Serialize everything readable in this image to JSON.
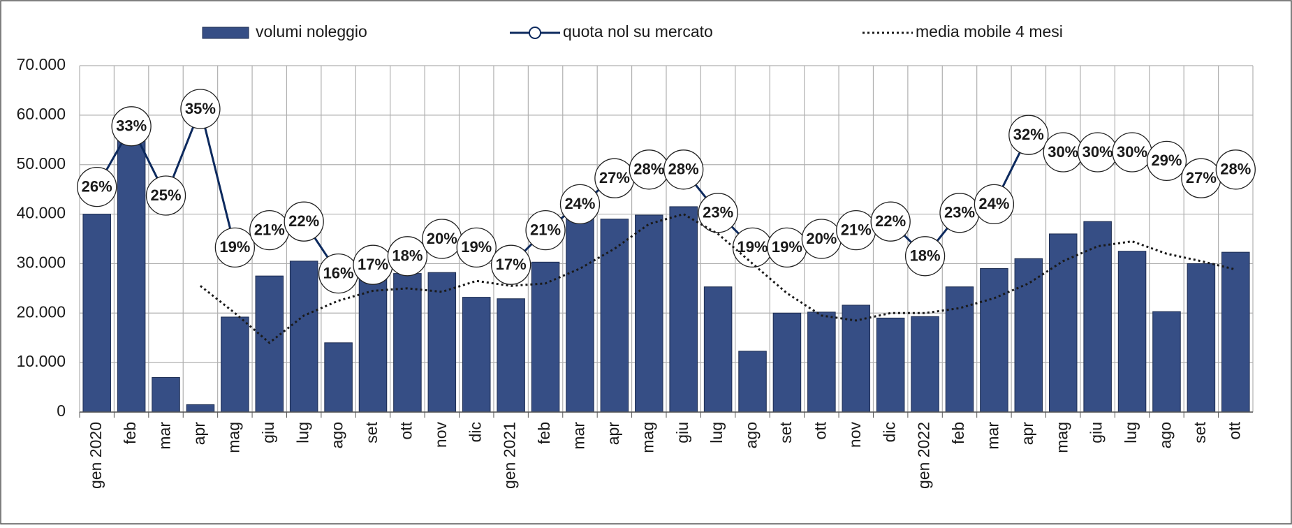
{
  "chart_data": {
    "type": "combo",
    "categories": [
      "gen 2020",
      "feb",
      "mar",
      "apr",
      "mag",
      "giu",
      "lug",
      "ago",
      "set",
      "ott",
      "nov",
      "dic",
      "gen 2021",
      "feb",
      "mar",
      "apr",
      "mag",
      "giu",
      "lug",
      "ago",
      "set",
      "ott",
      "nov",
      "dic",
      "gen 2022",
      "feb",
      "mar",
      "apr",
      "mag",
      "giu",
      "lug",
      "ago",
      "set",
      "ott"
    ],
    "series": [
      {
        "name": "volumi noleggio",
        "type": "bar",
        "color": "#364e85",
        "values": [
          40000,
          55000,
          7000,
          1500,
          19200,
          27500,
          30500,
          14000,
          27000,
          28000,
          28200,
          23200,
          22900,
          30300,
          39500,
          39000,
          39800,
          41500,
          25300,
          12300,
          20000,
          20200,
          21600,
          19000,
          19300,
          25300,
          29000,
          31000,
          36000,
          38500,
          32500,
          20300,
          30000,
          32300
        ]
      },
      {
        "name": "quota nol su mercato",
        "type": "line",
        "axis": "y2",
        "color": "#0d2a5e",
        "values": [
          26,
          33,
          25,
          35,
          19,
          21,
          22,
          16,
          17,
          18,
          20,
          19,
          17,
          21,
          24,
          27,
          28,
          28,
          23,
          19,
          19,
          20,
          21,
          22,
          18,
          23,
          24,
          32,
          30,
          30,
          30,
          29,
          27,
          28
        ],
        "value_labels": [
          "26%",
          "33%",
          "25%",
          "35%",
          "19%",
          "21%",
          "22%",
          "16%",
          "17%",
          "18%",
          "20%",
          "19%",
          "17%",
          "21%",
          "24%",
          "27%",
          "28%",
          "28%",
          "23%",
          "19%",
          "19%",
          "20%",
          "21%",
          "22%",
          "18%",
          "23%",
          "24%",
          "32%",
          "30%",
          "30%",
          "30%",
          "29%",
          "27%",
          "28%"
        ]
      },
      {
        "name": "media mobile 4 mesi",
        "type": "line",
        "dash": "dotted",
        "color": "#1a1a1a",
        "values": [
          null,
          null,
          null,
          25500,
          20000,
          14000,
          19500,
          22500,
          24500,
          25000,
          24300,
          26500,
          25500,
          26000,
          29000,
          33000,
          38000,
          40000,
          36000,
          30000,
          24000,
          19500,
          18500,
          20000,
          20000,
          21000,
          23000,
          26000,
          30500,
          33500,
          34500,
          32000,
          30500,
          28800
        ]
      }
    ],
    "ylim": [
      0,
      70000
    ],
    "yticks": [
      0,
      {
        "value": 10000,
        "label": "10.000"
      },
      {
        "value": 20000,
        "label": "20.000"
      },
      {
        "value": 30000,
        "label": "30.000"
      },
      {
        "value": 40000,
        "label": "40.000"
      },
      {
        "value": 50000,
        "label": "50.000"
      },
      {
        "value": 60000,
        "label": "60.000"
      },
      {
        "value": 70000,
        "label": "70.000"
      }
    ],
    "y2lim": [
      0,
      40
    ],
    "grid": true,
    "legend": "top"
  }
}
